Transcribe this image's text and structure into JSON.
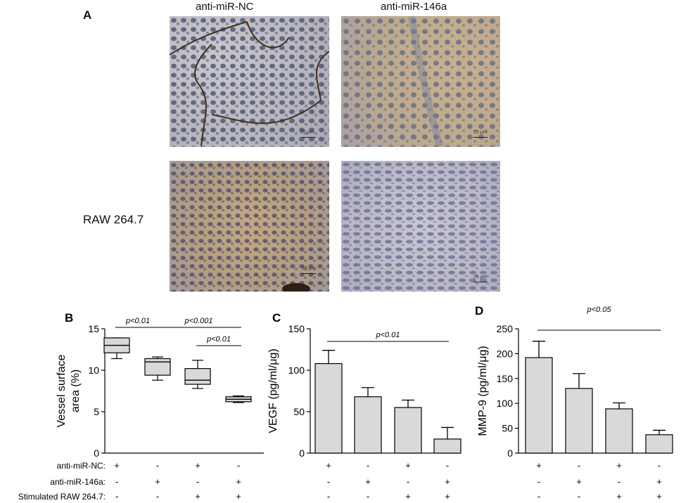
{
  "panel_a": {
    "label": "A",
    "col_titles": [
      "anti-miR-NC",
      "anti-miR-146a"
    ],
    "row_label": "RAW 264.7",
    "scale_label": "25 μm"
  },
  "panel_labels": {
    "b": "B",
    "c": "C",
    "d": "D"
  },
  "conditions": {
    "rows": [
      "anti-miR-NC:",
      "anti-miR-146a:",
      "Stimulated RAW 264.7:"
    ],
    "signs": [
      [
        "+",
        "-",
        "+",
        "-"
      ],
      [
        "-",
        "+",
        "-",
        "+"
      ],
      [
        "-",
        "-",
        "+",
        "+"
      ]
    ]
  },
  "colors": {
    "fill": "#d9d9d9",
    "stroke": "#000000"
  },
  "chart_data": [
    {
      "type": "box",
      "panel": "B",
      "ylabel": "Vessel surface area (%)",
      "ylim": [
        0,
        15
      ],
      "yticks": [
        0,
        5,
        10,
        15
      ],
      "groups": [
        {
          "min": 11.4,
          "q1": 12.1,
          "median": 13.0,
          "q3": 13.9,
          "max": 13.9
        },
        {
          "min": 8.8,
          "q1": 9.4,
          "median": 11.0,
          "q3": 11.4,
          "max": 11.6
        },
        {
          "min": 7.8,
          "q1": 8.3,
          "median": 8.8,
          "q3": 10.2,
          "max": 11.2
        },
        {
          "min": 6.1,
          "q1": 6.2,
          "median": 6.5,
          "q3": 6.8,
          "max": 6.9
        }
      ],
      "annotations": [
        {
          "text": "p<0.01",
          "from": 0,
          "to": 1,
          "level": 0
        },
        {
          "text": "p<0.001",
          "from": 1,
          "to": 3,
          "level": 0
        },
        {
          "text": "p<0.01",
          "from": 2,
          "to": 3,
          "level": 1
        }
      ]
    },
    {
      "type": "bar",
      "panel": "C",
      "ylabel": "VEGF (pg/ml/μg)",
      "ylim": [
        0,
        150
      ],
      "yticks": [
        0,
        50,
        100,
        150
      ],
      "values": [
        108,
        68,
        55,
        17
      ],
      "errors": [
        16,
        11,
        9,
        14
      ],
      "annotations": [
        {
          "text": "p<0.01",
          "from": 0,
          "to": 3
        }
      ]
    },
    {
      "type": "bar",
      "panel": "D",
      "ylabel": "MMP-9 (pg/ml/μg)",
      "ylim": [
        0,
        250
      ],
      "yticks": [
        0,
        50,
        100,
        150,
        200,
        250
      ],
      "values": [
        192,
        130,
        89,
        37
      ],
      "errors": [
        33,
        30,
        12,
        9
      ],
      "annotations": [
        {
          "text": "p<0.05",
          "from": 0,
          "to": 3
        }
      ]
    }
  ]
}
